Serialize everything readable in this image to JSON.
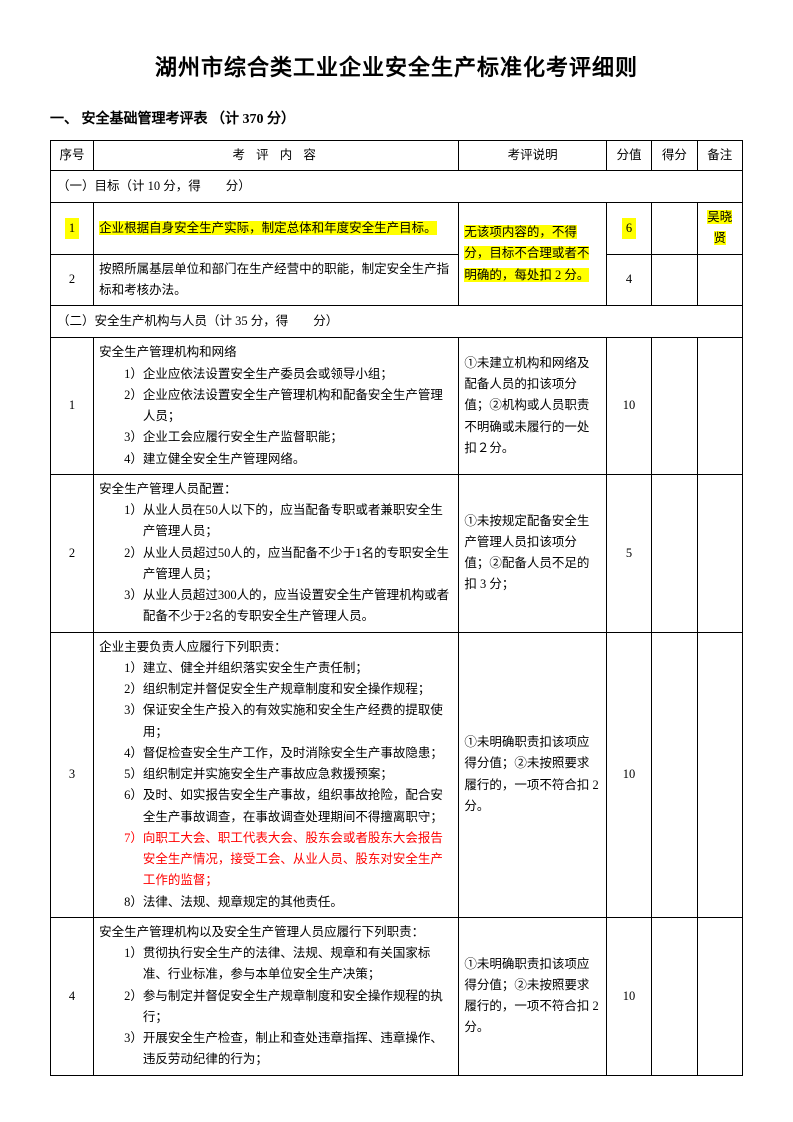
{
  "title": "湖州市综合类工业企业安全生产标准化考评细则",
  "section_header": "一、 安全基础管理考评表 （计 370 分）",
  "headers": {
    "num": "序号",
    "content": "考 评 内 容",
    "desc": "考评说明",
    "score": "分值",
    "got": "得分",
    "note": "备注"
  },
  "section1": {
    "label": "（一）目标（计 10 分，得　　分）",
    "row1": {
      "num": "1",
      "content": "企业根据自身安全生产实际，制定总体和年度安全生产目标。",
      "desc": "无该项内容的，不得分，目标不合理或者不明确的，每处扣 2 分。",
      "score": "6",
      "note": "吴晓贤"
    },
    "row2": {
      "num": "2",
      "content": "按照所属基层单位和部门在生产经营中的职能，制定安全生产指标和考核办法。",
      "score": "4"
    }
  },
  "section2": {
    "label": "（二）安全生产机构与人员（计 35 分，得　　分）",
    "row1": {
      "num": "1",
      "line0": "安全生产管理机构和网络",
      "line1": "1）企业应依法设置安全生产委员会或领导小组；",
      "line2": "2）企业应依法设置安全生产管理机构和配备安全生产管理人员；",
      "line3": "3）企业工会应履行安全生产监督职能；",
      "line4": "4）建立健全安全生产管理网络。",
      "desc": "①未建立机构和网络及配备人员的扣该项分值；②机构或人员职责不明确或未履行的一处扣２分。",
      "score": "10"
    },
    "row2": {
      "num": "2",
      "line0": "安全生产管理人员配置：",
      "line1": "1）从业人员在50人以下的，应当配备专职或者兼职安全生产管理人员；",
      "line2": "2）从业人员超过50人的，应当配备不少于1名的专职安全生产管理人员；",
      "line3": "3）从业人员超过300人的，应当设置安全生产管理机构或者配备不少于2名的专职安全生产管理人员。",
      "desc": "①未按规定配备安全生产管理人员扣该项分值；②配备人员不足的扣 3 分；",
      "score": "5"
    },
    "row3": {
      "num": "3",
      "line0": "企业主要负责人应履行下列职责：",
      "line1": "1）建立、健全并组织落实安全生产责任制；",
      "line2": "2）组织制定并督促安全生产规章制度和安全操作规程；",
      "line3": "3）保证安全生产投入的有效实施和安全生产经费的提取使用；",
      "line4": "4）督促检查安全生产工作，及时消除安全生产事故隐患；",
      "line5": "5）组织制定并实施安全生产事故应急救援预案；",
      "line6": "6）及时、如实报告安全生产事故，组织事故抢险，配合安全生产事故调查，在事故调查处理期间不得擅离职守；",
      "line7": "7）向职工大会、职工代表大会、股东会或者股东大会报告安全生产情况，接受工会、从业人员、股东对安全生产工作的监督；",
      "line8": "8）法律、法规、规章规定的其他责任。",
      "desc": "①未明确职责扣该项应得分值；②未按照要求履行的，一项不符合扣 2 分。",
      "score": "10"
    },
    "row4": {
      "num": "4",
      "line0": "安全生产管理机构以及安全生产管理人员应履行下列职责：",
      "line1": "1）贯彻执行安全生产的法律、法规、规章和有关国家标准、行业标准，参与本单位安全生产决策；",
      "line2": "2）参与制定并督促安全生产规章制度和安全操作规程的执行；",
      "line3": "3）开展安全生产检查，制止和查处违章指挥、违章操作、违反劳动纪律的行为；",
      "desc": "①未明确职责扣该项应得分值；②未按照要求履行的，一项不符合扣 2 分。",
      "score": "10"
    }
  }
}
